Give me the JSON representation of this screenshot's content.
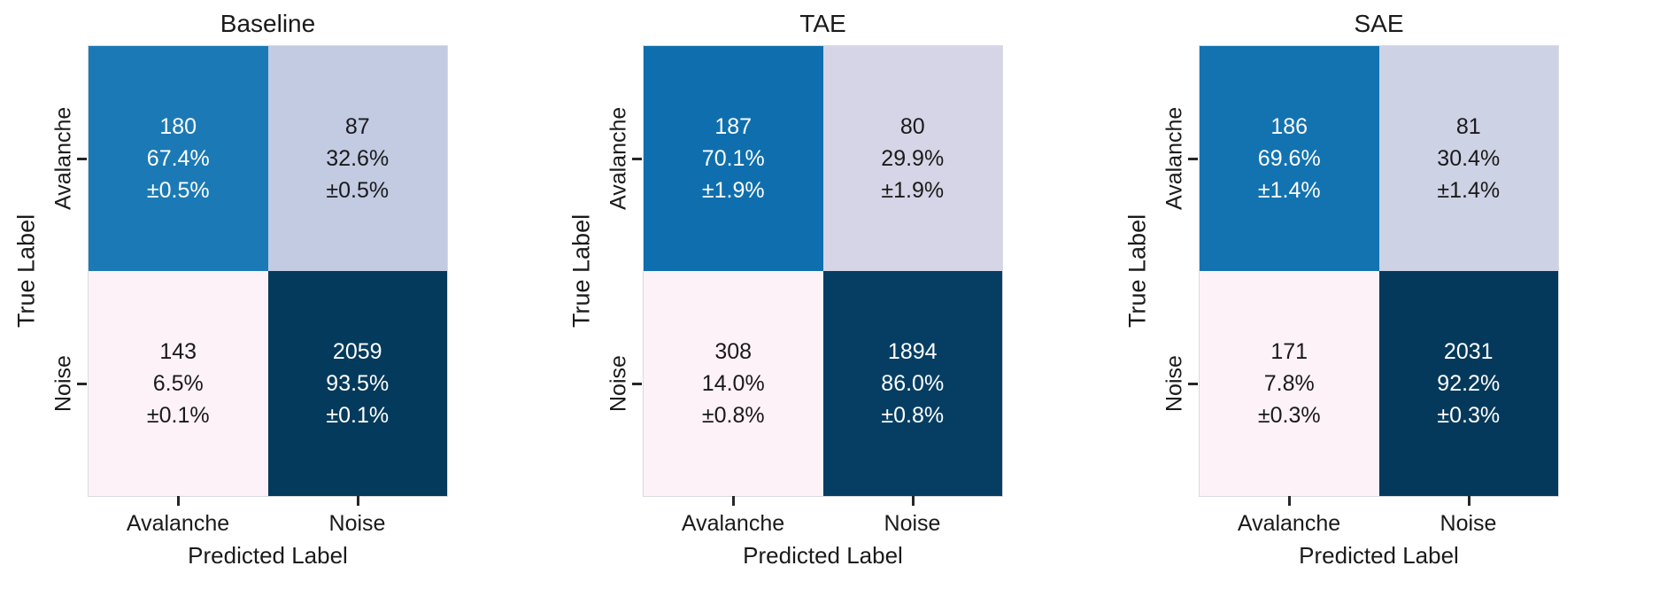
{
  "figure": {
    "xlabel": "Predicted Label",
    "ylabel": "True Label",
    "classes": [
      "Avalanche",
      "Noise"
    ],
    "text_color": "#1a1a1a",
    "tick_color": "#262626",
    "background": "#ffffff"
  },
  "panels": [
    {
      "title": "Baseline",
      "ylabel": "True Label",
      "xlabel": "Predicted Label",
      "row_labels": [
        "Avalanche",
        "Noise"
      ],
      "col_labels": [
        "Avalanche",
        "Noise"
      ],
      "cells": [
        [
          {
            "count": "180",
            "percent": "67.4%",
            "std": "±0.5%",
            "bg": "#1b7ab5",
            "fg": "#ffffff"
          },
          {
            "count": "87",
            "percent": "32.6%",
            "std": "±0.5%",
            "bg": "#c2cbe2",
            "fg": "#1a1a1a"
          }
        ],
        [
          {
            "count": "143",
            "percent": "6.5%",
            "std": "±0.1%",
            "bg": "#fdf2f8",
            "fg": "#1a1a1a"
          },
          {
            "count": "2059",
            "percent": "93.5%",
            "std": "±0.1%",
            "bg": "#043a5c",
            "fg": "#ffffff"
          }
        ]
      ]
    },
    {
      "title": "TAE",
      "ylabel": "True Label",
      "xlabel": "Predicted Label",
      "row_labels": [
        "Avalanche",
        "Noise"
      ],
      "col_labels": [
        "Avalanche",
        "Noise"
      ],
      "cells": [
        [
          {
            "count": "187",
            "percent": "70.1%",
            "std": "±1.9%",
            "bg": "#0f6fae",
            "fg": "#ffffff"
          },
          {
            "count": "80",
            "percent": "29.9%",
            "std": "±1.9%",
            "bg": "#d6d5e7",
            "fg": "#1a1a1a"
          }
        ],
        [
          {
            "count": "308",
            "percent": "14.0%",
            "std": "±0.8%",
            "bg": "#fdf2f8",
            "fg": "#1a1a1a"
          },
          {
            "count": "1894",
            "percent": "86.0%",
            "std": "±0.8%",
            "bg": "#063e63",
            "fg": "#ffffff"
          }
        ]
      ]
    },
    {
      "title": "SAE",
      "ylabel": "True Label",
      "xlabel": "Predicted Label",
      "row_labels": [
        "Avalanche",
        "Noise"
      ],
      "col_labels": [
        "Avalanche",
        "Noise"
      ],
      "cells": [
        [
          {
            "count": "186",
            "percent": "69.6%",
            "std": "±1.4%",
            "bg": "#1373b1",
            "fg": "#ffffff"
          },
          {
            "count": "81",
            "percent": "30.4%",
            "std": "±1.4%",
            "bg": "#cdd2e5",
            "fg": "#1a1a1a"
          }
        ],
        [
          {
            "count": "171",
            "percent": "7.8%",
            "std": "±0.3%",
            "bg": "#fdf2f8",
            "fg": "#1a1a1a"
          },
          {
            "count": "2031",
            "percent": "92.2%",
            "std": "±0.3%",
            "bg": "#05395b",
            "fg": "#ffffff"
          }
        ]
      ]
    }
  ],
  "chart_data": [
    {
      "type": "heatmap",
      "title": "Baseline",
      "xlabel": "Predicted Label",
      "ylabel": "True Label",
      "x_categories": [
        "Avalanche",
        "Noise"
      ],
      "y_categories": [
        "Avalanche",
        "Noise"
      ],
      "counts": [
        [
          180,
          87
        ],
        [
          143,
          2059
        ]
      ],
      "row_percent": [
        [
          67.4,
          32.6
        ],
        [
          6.5,
          93.5
        ]
      ],
      "std_percent": [
        [
          0.5,
          0.5
        ],
        [
          0.1,
          0.1
        ]
      ],
      "grid": false,
      "legend": "none"
    },
    {
      "type": "heatmap",
      "title": "TAE",
      "xlabel": "Predicted Label",
      "ylabel": "True Label",
      "x_categories": [
        "Avalanche",
        "Noise"
      ],
      "y_categories": [
        "Avalanche",
        "Noise"
      ],
      "counts": [
        [
          187,
          80
        ],
        [
          308,
          1894
        ]
      ],
      "row_percent": [
        [
          70.1,
          29.9
        ],
        [
          14.0,
          86.0
        ]
      ],
      "std_percent": [
        [
          1.9,
          1.9
        ],
        [
          0.8,
          0.8
        ]
      ],
      "grid": false,
      "legend": "none"
    },
    {
      "type": "heatmap",
      "title": "SAE",
      "xlabel": "Predicted Label",
      "ylabel": "True Label",
      "x_categories": [
        "Avalanche",
        "Noise"
      ],
      "y_categories": [
        "Avalanche",
        "Noise"
      ],
      "counts": [
        [
          186,
          81
        ],
        [
          171,
          2031
        ]
      ],
      "row_percent": [
        [
          69.6,
          30.4
        ],
        [
          7.8,
          92.2
        ]
      ],
      "std_percent": [
        [
          1.4,
          1.4
        ],
        [
          0.3,
          0.3
        ]
      ],
      "grid": false,
      "legend": "none"
    }
  ]
}
